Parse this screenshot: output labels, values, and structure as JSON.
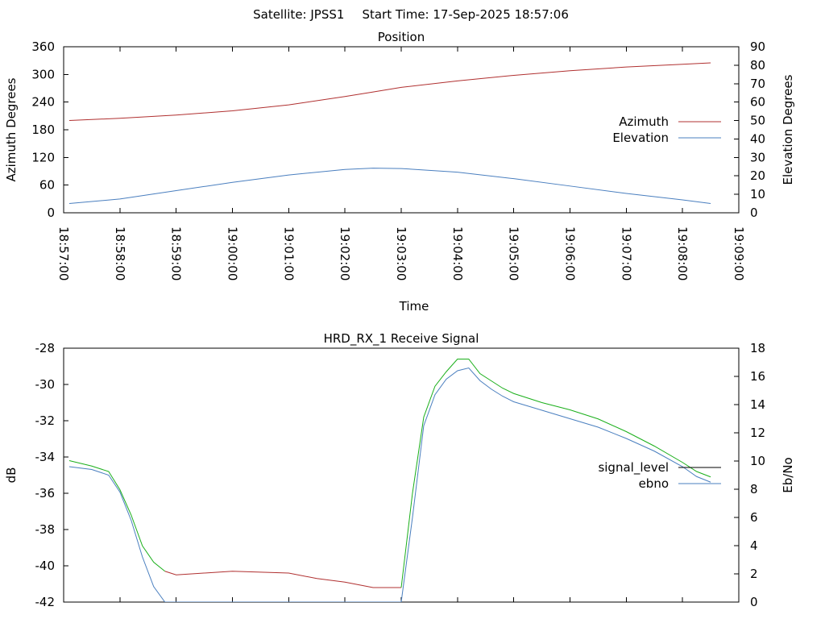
{
  "header": {
    "satellite_label": "Satellite: JPSS1",
    "start_time_label": "Start Time: 17-Sep-2025 18:57:06"
  },
  "chart_data": [
    {
      "type": "line",
      "title": "Position",
      "xlabel": "Time",
      "ylabel": "Azimuth Degrees",
      "y2label": "Elevation Degrees",
      "x_ticks": [
        "18:57:00",
        "18:58:00",
        "18:59:00",
        "19:00:00",
        "19:01:00",
        "19:02:00",
        "19:03:00",
        "19:04:00",
        "19:05:00",
        "19:06:00",
        "19:07:00",
        "19:08:00",
        "19:09:00"
      ],
      "xlim": [
        "18:57:00",
        "19:09:00"
      ],
      "ylim": [
        0,
        360
      ],
      "y_ticks": [
        0,
        60,
        120,
        180,
        240,
        300,
        360
      ],
      "y2lim": [
        0,
        90
      ],
      "y2_ticks": [
        0,
        10,
        20,
        30,
        40,
        50,
        60,
        70,
        80,
        90
      ],
      "grid": false,
      "legend_position": "right",
      "series": [
        {
          "name": "Azimuth",
          "axis": "left",
          "color": "#b03030",
          "x": [
            "18:57:06",
            "18:58:00",
            "18:59:00",
            "19:00:00",
            "19:01:00",
            "19:02:00",
            "19:02:30",
            "19:03:00",
            "19:04:00",
            "19:05:00",
            "19:06:00",
            "19:07:00",
            "19:08:00",
            "19:08:30"
          ],
          "y": [
            200,
            205,
            212,
            221,
            234,
            252,
            262,
            272,
            286,
            298,
            308,
            316,
            322,
            325
          ]
        },
        {
          "name": "Elevation",
          "axis": "right",
          "color": "#4a7fbf",
          "x": [
            "18:57:06",
            "18:58:00",
            "18:59:00",
            "19:00:00",
            "19:01:00",
            "19:02:00",
            "19:02:30",
            "19:03:00",
            "19:04:00",
            "19:05:00",
            "19:06:00",
            "19:07:00",
            "19:08:00",
            "19:08:30"
          ],
          "y": [
            5,
            7.5,
            12,
            16.5,
            20.5,
            23.5,
            24.2,
            24,
            22,
            18.5,
            14.5,
            10.5,
            7,
            5
          ]
        }
      ]
    },
    {
      "type": "line",
      "title": "HRD_RX_1 Receive Signal",
      "ylabel": "dB",
      "y2label": "Eb/No",
      "xlim": [
        "18:57:00",
        "19:09:00"
      ],
      "ylim": [
        -42,
        -28
      ],
      "y_ticks": [
        -42,
        -40,
        -38,
        -36,
        -34,
        -32,
        -30,
        -28
      ],
      "y2lim": [
        0,
        18
      ],
      "y2_ticks": [
        0,
        2,
        4,
        6,
        8,
        10,
        12,
        14,
        16,
        18
      ],
      "grid": false,
      "legend_position": "right",
      "series": [
        {
          "name": "signal_level",
          "axis": "left",
          "color": "#1aaf1a",
          "low_color": "#b03030",
          "x": [
            "18:57:06",
            "18:57:30",
            "18:57:48",
            "18:58:00",
            "18:58:12",
            "18:58:24",
            "18:58:36",
            "18:58:48",
            "18:59:00",
            "19:00:00",
            "19:01:00",
            "19:01:30",
            "19:02:00",
            "19:02:30",
            "19:03:00",
            "19:03:12",
            "19:03:24",
            "19:03:36",
            "19:03:48",
            "19:04:00",
            "19:04:12",
            "19:04:24",
            "19:04:36",
            "19:04:48",
            "19:05:00",
            "19:05:30",
            "19:06:00",
            "19:06:30",
            "19:07:00",
            "19:07:30",
            "19:08:00",
            "19:08:15",
            "19:08:30"
          ],
          "y": [
            -34.2,
            -34.5,
            -34.8,
            -35.8,
            -37.2,
            -38.9,
            -39.8,
            -40.3,
            -40.5,
            -40.3,
            -40.4,
            -40.7,
            -40.9,
            -41.2,
            -41.2,
            -36,
            -31.8,
            -30.1,
            -29.3,
            -28.6,
            -28.6,
            -29.4,
            -29.8,
            -30.2,
            -30.5,
            -31,
            -31.4,
            -31.9,
            -32.6,
            -33.4,
            -34.3,
            -34.8,
            -35.1
          ]
        },
        {
          "name": "ebno",
          "axis": "right",
          "color": "#4a7fbf",
          "x": [
            "18:57:06",
            "18:57:30",
            "18:57:48",
            "18:58:00",
            "18:58:12",
            "18:58:24",
            "18:58:36",
            "18:58:48",
            "19:03:00",
            "19:03:12",
            "19:03:24",
            "19:03:36",
            "19:03:48",
            "19:04:00",
            "19:04:12",
            "19:04:24",
            "19:04:36",
            "19:04:48",
            "19:05:00",
            "19:05:30",
            "19:06:00",
            "19:06:30",
            "19:07:00",
            "19:07:30",
            "19:08:00",
            "19:08:15",
            "19:08:30"
          ],
          "y": [
            9.6,
            9.4,
            9,
            7.8,
            5.8,
            3.2,
            1.1,
            0,
            0,
            6,
            12.5,
            14.7,
            15.8,
            16.4,
            16.6,
            15.7,
            15.1,
            14.6,
            14.2,
            13.6,
            13,
            12.4,
            11.6,
            10.7,
            9.6,
            8.9,
            8.5
          ]
        }
      ]
    }
  ]
}
